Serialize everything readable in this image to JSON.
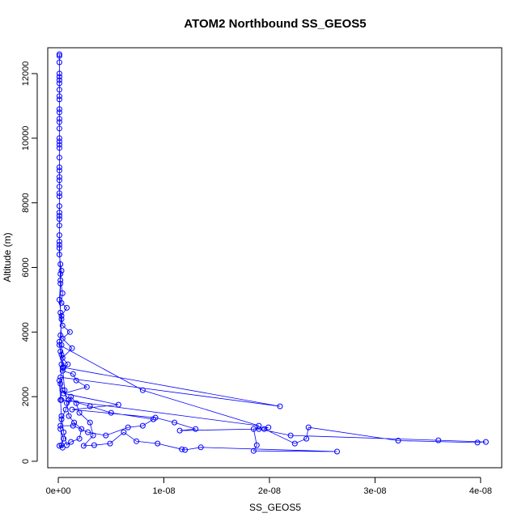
{
  "chart_data": {
    "type": "line",
    "title": "ATOM2 Northbound SS_GEOS5",
    "xlabel": "SS_GEOS5",
    "ylabel": "Altitude (m)",
    "xlim": [
      -1e-09,
      4.2e-08
    ],
    "ylim": [
      -200,
      12800
    ],
    "x_ticks": [
      0,
      1e-08,
      2e-08,
      3e-08,
      4e-08
    ],
    "x_tick_labels": [
      "0e+00",
      "1e-08",
      "2e-08",
      "3e-08",
      "4e-08"
    ],
    "y_ticks": [
      0,
      2000,
      4000,
      6000,
      8000,
      10000,
      12000
    ],
    "y_tick_labels": [
      "0",
      "2000",
      "4000",
      "6000",
      "8000",
      "10000",
      "12000"
    ],
    "series_color": "#0000ff",
    "marker": "open-circle",
    "connected": true,
    "series": [
      {
        "points": [
          [
            1e-10,
            12600
          ],
          [
            1e-10,
            12550
          ],
          [
            1e-10,
            12350
          ],
          [
            1e-10,
            12000
          ],
          [
            1e-10,
            11800
          ],
          [
            1e-10,
            11500
          ],
          [
            1e-10,
            11200
          ],
          [
            1e-10,
            10900
          ],
          [
            1e-10,
            10600
          ],
          [
            1e-10,
            10300
          ],
          [
            1e-10,
            10000
          ],
          [
            1e-10,
            9700
          ],
          [
            1e-10,
            9400
          ],
          [
            1e-10,
            9100
          ],
          [
            1e-10,
            8800
          ],
          [
            1e-10,
            8500
          ],
          [
            1e-10,
            8200
          ],
          [
            1e-10,
            7900
          ],
          [
            1e-10,
            7600
          ],
          [
            1e-10,
            7300
          ],
          [
            1e-10,
            7000
          ],
          [
            1e-10,
            6700
          ],
          [
            1e-10,
            6400
          ],
          [
            2e-10,
            6100
          ],
          [
            3e-10,
            5900
          ],
          [
            2e-10,
            5600
          ],
          [
            4e-10,
            5200
          ],
          [
            3e-10,
            4900
          ],
          [
            8e-10,
            4750
          ],
          [
            3e-10,
            4500
          ],
          [
            4e-10,
            4200
          ],
          [
            1.1e-09,
            4000
          ],
          [
            4e-10,
            3800
          ],
          [
            1.3e-09,
            3500
          ],
          [
            4e-10,
            3200
          ],
          [
            9e-10,
            3000
          ],
          [
            4e-10,
            2800
          ],
          [
            1.4e-09,
            2700
          ],
          [
            1.7e-09,
            2500
          ],
          [
            2.7e-09,
            2300
          ],
          [
            5e-10,
            2100
          ],
          [
            5.7e-09,
            1750
          ],
          [
            1.3e-09,
            1600
          ],
          [
            9.2e-09,
            1350
          ],
          [
            1.1e-08,
            1200
          ],
          [
            1.3e-08,
            1000
          ],
          [
            1.15e-08,
            950
          ],
          [
            1.9e-08,
            1000
          ],
          [
            2.2e-08,
            800
          ],
          [
            3.6e-08,
            650
          ],
          [
            4.05e-08,
            600
          ],
          [
            3.97e-08,
            580
          ],
          [
            3.22e-08,
            640
          ],
          [
            2.37e-08,
            1050
          ],
          [
            2.35e-08,
            700
          ],
          [
            2.24e-08,
            550
          ],
          [
            1.95e-08,
            1000
          ],
          [
            1.99e-08,
            1050
          ],
          [
            1.85e-08,
            1000
          ],
          [
            1.88e-08,
            500
          ],
          [
            1.85e-08,
            320
          ],
          [
            2.64e-08,
            300
          ],
          [
            1.35e-08,
            430
          ],
          [
            1.2e-08,
            350
          ],
          [
            1.17e-08,
            370
          ],
          [
            9.4e-09,
            550
          ],
          [
            7.4e-09,
            620
          ],
          [
            6.2e-09,
            900
          ],
          [
            4.9e-09,
            550
          ],
          [
            3.4e-09,
            500
          ],
          [
            2.4e-09,
            480
          ],
          [
            3.3e-09,
            800
          ],
          [
            3e-09,
            1200
          ],
          [
            2e-09,
            1500
          ],
          [
            1.7e-09,
            1800
          ],
          [
            1.2e-09,
            2000
          ],
          [
            7e-10,
            1600
          ],
          [
            3e-10,
            1300
          ],
          [
            2e-10,
            1000
          ],
          [
            5e-10,
            700
          ],
          [
            3e-10,
            500
          ],
          [
            1e-10,
            480
          ],
          [
            4e-10,
            420
          ],
          [
            2e-10,
            1100
          ],
          [
            1.4e-09,
            1100
          ],
          [
            2.8e-09,
            900
          ],
          [
            4.5e-09,
            800
          ],
          [
            6.6e-09,
            1050
          ],
          [
            8e-09,
            1100
          ],
          [
            9e-09,
            1300
          ],
          [
            5e-09,
            1500
          ],
          [
            3e-09,
            1700
          ],
          [
            1e-09,
            1900
          ],
          [
            4e-10,
            2200
          ],
          [
            2e-10,
            2600
          ],
          [
            2.1e-08,
            1700
          ],
          [
            5e-10,
            2900
          ],
          [
            3e-10,
            3300
          ],
          [
            1e-10,
            3600
          ],
          [
            8e-09,
            2200
          ],
          [
            1.9e-08,
            1100
          ],
          [
            3e-10,
            1900
          ],
          [
            2e-10,
            2400
          ],
          [
            3e-10,
            3000
          ],
          [
            2e-10,
            3400
          ],
          [
            1e-10,
            3700
          ],
          [
            2e-10,
            3900
          ],
          [
            3e-10,
            4400
          ],
          [
            1e-10,
            5000
          ],
          [
            2e-10,
            5500
          ],
          [
            1e-10,
            6800
          ],
          [
            1e-10,
            7500
          ],
          [
            1e-10,
            8300
          ],
          [
            1e-10,
            9000
          ],
          [
            1e-10,
            9800
          ],
          [
            1e-10,
            10500
          ],
          [
            1e-10,
            11300
          ],
          [
            1e-10,
            11900
          ],
          [
            1e-10,
            11700
          ],
          [
            1e-10,
            10800
          ],
          [
            1e-10,
            9900
          ],
          [
            1e-10,
            8700
          ],
          [
            1e-10,
            7700
          ],
          [
            1e-10,
            6600
          ],
          [
            2e-10,
            5800
          ],
          [
            2e-10,
            4600
          ],
          [
            3e-10,
            3600
          ],
          [
            4e-10,
            2900
          ],
          [
            6e-10,
            2200
          ],
          [
            8e-10,
            1800
          ],
          [
            1e-09,
            1400
          ],
          [
            1.5e-09,
            1200
          ],
          [
            2.2e-09,
            1000
          ],
          [
            2e-09,
            700
          ],
          [
            1.2e-09,
            600
          ],
          [
            8e-10,
            500
          ],
          [
            5e-10,
            900
          ],
          [
            3e-10,
            1400
          ],
          [
            2e-10,
            1900
          ],
          [
            1e-10,
            2500
          ]
        ]
      }
    ]
  }
}
